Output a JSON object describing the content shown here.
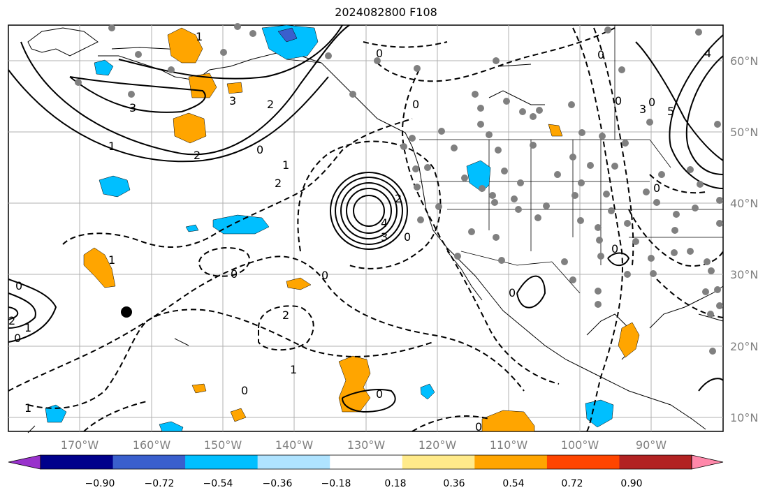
{
  "title": "2024082800 F108",
  "lat_labels": [
    "60°N",
    "50°N",
    "40°N",
    "30°N",
    "20°N",
    "10°N"
  ],
  "lon_labels": [
    "170°W",
    "160°W",
    "150°W",
    "140°W",
    "130°W",
    "120°W",
    "110°W",
    "100°W",
    "90°W"
  ],
  "colorbar": {
    "colors": [
      "#9932cc",
      "#00008b",
      "#3a5fcd",
      "#00bfff",
      "#afe3ff",
      "#ffffff",
      "#ffea8a",
      "#ffa500",
      "#ff4500",
      "#b22222",
      "#ff88aa"
    ],
    "labels": [
      "−0.90",
      "−0.72",
      "−0.54",
      "−0.36",
      "−0.18",
      "0.18",
      "0.36",
      "0.54",
      "0.72",
      "0.90"
    ]
  },
  "contour_labels": [
    "1",
    "3",
    "3",
    "2",
    "2",
    "0",
    "1",
    "1",
    "2",
    "0",
    "1",
    "0",
    "2",
    "0",
    "2",
    "0",
    "3",
    "4",
    "3",
    "4",
    "5",
    "0",
    "0",
    "0",
    "0",
    "0",
    "0",
    "0",
    "0",
    "2",
    "0",
    "1",
    "0",
    "1",
    "1",
    "0",
    "0"
  ],
  "style": {
    "land_fill": "#ffffff",
    "grid_color": "#b0b0b0",
    "station_color": "#808080",
    "positive_fill": "#ffa500",
    "negative_fill": "#00bfff"
  }
}
